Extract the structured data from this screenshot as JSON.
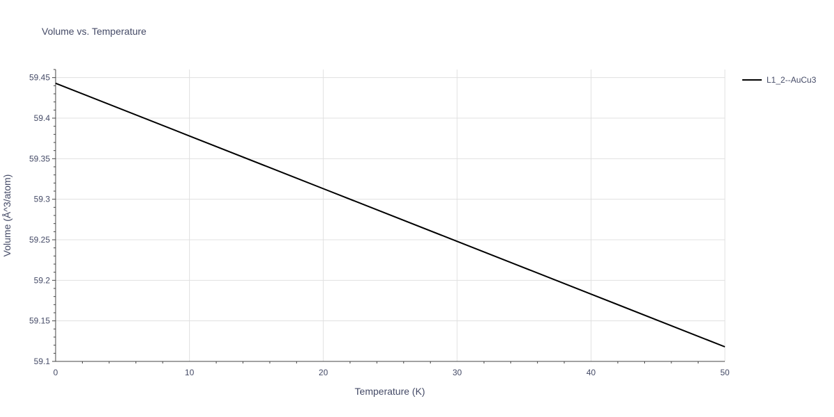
{
  "chart_data": {
    "type": "line",
    "title": "Volume vs. Temperature",
    "xlabel": "Temperature (K)",
    "ylabel": "Volume (Å^3/atom)",
    "xlim": [
      0,
      50
    ],
    "ylim": [
      59.1,
      59.46
    ],
    "xticks": [
      0,
      10,
      20,
      30,
      40,
      50
    ],
    "yticks": [
      59.1,
      59.15,
      59.2,
      59.25,
      59.3,
      59.35,
      59.4,
      59.45
    ],
    "xtick_labels": [
      "0",
      "10",
      "20",
      "30",
      "40",
      "50"
    ],
    "ytick_labels": [
      "59.1",
      "59.15",
      "59.2",
      "59.25",
      "59.3",
      "59.35",
      "59.4",
      "59.45"
    ],
    "grid": true,
    "legend_position": "top-right",
    "series": [
      {
        "name": "L1_2--AuCu3",
        "color": "#000000",
        "x": [
          0,
          10,
          20,
          30,
          40,
          50
        ],
        "y": [
          59.443,
          59.378,
          59.313,
          59.248,
          59.183,
          59.118
        ]
      }
    ]
  }
}
